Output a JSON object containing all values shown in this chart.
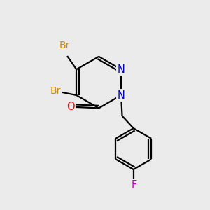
{
  "bg_color": "#ebebeb",
  "bond_color": "#000000",
  "bond_width": 1.6,
  "atom_colors": {
    "Br_upper": "#cc8800",
    "Br_lower": "#cc8800",
    "O": "#ff0000",
    "N1": "#0000cc",
    "N2": "#0000cc",
    "F": "#cc00cc",
    "C": "#000000"
  },
  "font_size_atoms": 10.5
}
